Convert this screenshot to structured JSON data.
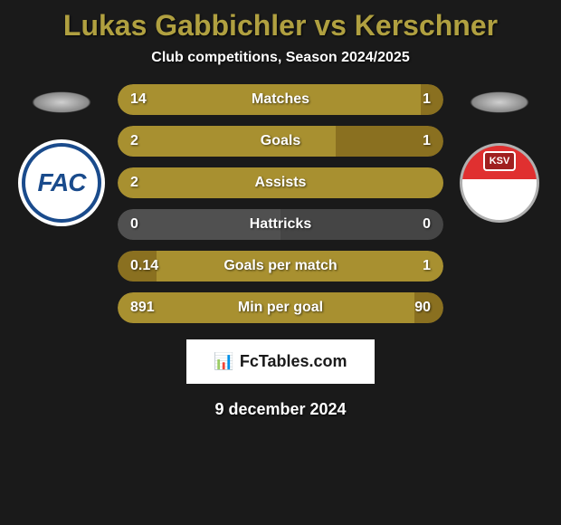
{
  "title": "Lukas Gabbichler vs Kerschner",
  "subtitle": "Club competitions, Season 2024/2025",
  "date": "9 december 2024",
  "footer_brand": "FcTables.com",
  "colors": {
    "background": "#1a1a1a",
    "title_color": "#b0a040",
    "bar_gold": "#a89030",
    "bar_gold_dark": "#8a7020",
    "bar_neutral": "#505050",
    "text": "#ffffff"
  },
  "player_left": {
    "club_abbr": "FAC",
    "club_colors": {
      "primary": "#1a4b8c",
      "secondary": "#ffffff"
    }
  },
  "player_right": {
    "club_abbr": "KSV",
    "club_colors": {
      "primary": "#e03030",
      "secondary": "#ffffff"
    }
  },
  "stats": [
    {
      "label": "Matches",
      "left_value": "14",
      "right_value": "1",
      "left_pct": 93,
      "right_pct": 7,
      "left_color": "#a89030",
      "right_color": "#8a7020"
    },
    {
      "label": "Goals",
      "left_value": "2",
      "right_value": "1",
      "left_pct": 67,
      "right_pct": 33,
      "left_color": "#a89030",
      "right_color": "#8a7020"
    },
    {
      "label": "Assists",
      "left_value": "2",
      "right_value": "",
      "left_pct": 100,
      "right_pct": 0,
      "left_color": "#a89030",
      "right_color": "#8a7020"
    },
    {
      "label": "Hattricks",
      "left_value": "0",
      "right_value": "0",
      "left_pct": 50,
      "right_pct": 50,
      "left_color": "#505050",
      "right_color": "#454545"
    },
    {
      "label": "Goals per match",
      "left_value": "0.14",
      "right_value": "1",
      "left_pct": 12,
      "right_pct": 88,
      "left_color": "#8a7020",
      "right_color": "#a89030"
    },
    {
      "label": "Min per goal",
      "left_value": "891",
      "right_value": "90",
      "left_pct": 91,
      "right_pct": 9,
      "left_color": "#a89030",
      "right_color": "#8a7020"
    }
  ]
}
